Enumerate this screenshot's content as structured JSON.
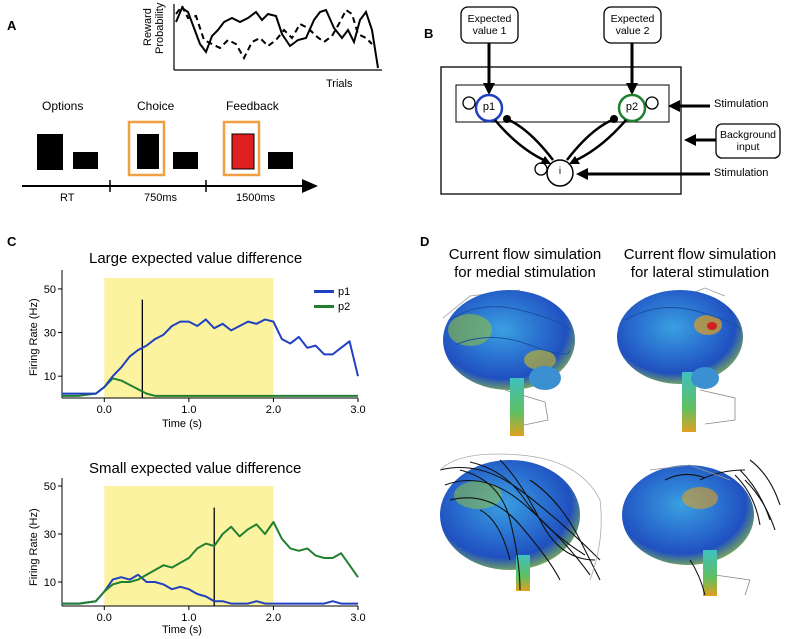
{
  "panels": {
    "a": "A",
    "b": "B",
    "c": "C",
    "d": "D"
  },
  "panel_a": {
    "reward_plot": {
      "ylabel_line1": "Reward",
      "ylabel_line2": "Probability",
      "xlabel": "Trials"
    },
    "phases": [
      {
        "label": "Options",
        "duration": "RT"
      },
      {
        "label": "Choice",
        "duration": "750ms"
      },
      {
        "label": "Feedback",
        "duration": "1500ms"
      }
    ],
    "colors": {
      "highlight": "#f0a040",
      "feedback": "#e02020"
    }
  },
  "panel_b": {
    "expected_value_1_line1": "Expected",
    "expected_value_1_line2": "value 1",
    "expected_value_2_line1": "Expected",
    "expected_value_2_line2": "value 2",
    "pool_p1": "p1",
    "pool_p2": "p2",
    "pool_i": "i",
    "stimulation_top": "Stimulation",
    "stimulation_bottom": "Stimulation",
    "background_line1": "Background",
    "background_line2": "input",
    "colors": {
      "p1": "#2040c0",
      "p2": "#208030"
    }
  },
  "panel_d": {
    "title_medial_line1": "Current flow simulation",
    "title_medial_line2": "for medial stimulation",
    "title_lateral_line1": "Current flow simulation",
    "title_lateral_line2": "for lateral stimulation"
  },
  "chart_data": [
    {
      "type": "line",
      "title": "Large expected value difference",
      "xlabel": "Time (s)",
      "ylabel": "Firing Rate (Hz)",
      "xlim": [
        -0.5,
        3.0
      ],
      "ylim": [
        0,
        55
      ],
      "xticks": [
        "0.0",
        "1.0",
        "2.0",
        "3.0"
      ],
      "yticks": [
        "10",
        "30",
        "50"
      ],
      "shaded_interval": [
        0.0,
        2.0
      ],
      "decision_time": 0.45,
      "x": [
        -0.5,
        -0.3,
        -0.1,
        0.0,
        0.1,
        0.2,
        0.3,
        0.4,
        0.5,
        0.6,
        0.7,
        0.8,
        0.9,
        1.0,
        1.1,
        1.2,
        1.3,
        1.4,
        1.5,
        1.6,
        1.7,
        1.8,
        1.9,
        2.0,
        2.1,
        2.2,
        2.3,
        2.4,
        2.5,
        2.6,
        2.7,
        2.8,
        2.9,
        3.0
      ],
      "series": [
        {
          "name": "p1",
          "color": "#2040c0",
          "values": [
            2,
            2,
            2,
            5,
            10,
            14,
            19,
            22,
            24,
            27,
            29,
            33,
            35,
            35,
            33,
            36,
            32,
            34,
            31,
            33,
            35,
            34,
            36,
            35,
            27,
            25,
            28,
            23,
            24,
            20,
            20,
            23,
            26,
            10
          ]
        },
        {
          "name": "p2",
          "color": "#208030",
          "values": [
            1,
            1,
            2,
            5,
            9,
            8,
            6,
            4,
            2,
            1,
            1,
            1,
            1,
            1,
            1,
            1,
            1,
            1,
            1,
            1,
            1,
            1,
            1,
            1,
            1,
            1,
            1,
            1,
            1,
            1,
            1,
            1,
            1,
            1
          ]
        }
      ]
    },
    {
      "type": "line",
      "title": "Small expected value difference",
      "xlabel": "Time (s)",
      "ylabel": "Firing Rate (Hz)",
      "xlim": [
        -0.5,
        3.0
      ],
      "ylim": [
        0,
        50
      ],
      "xticks": [
        "0.0",
        "1.0",
        "2.0",
        "3.0"
      ],
      "yticks": [
        "10",
        "30",
        "50"
      ],
      "shaded_interval": [
        0.0,
        2.0
      ],
      "decision_time": 1.3,
      "x": [
        -0.5,
        -0.3,
        -0.1,
        0.0,
        0.1,
        0.2,
        0.3,
        0.4,
        0.5,
        0.6,
        0.7,
        0.8,
        0.9,
        1.0,
        1.1,
        1.2,
        1.3,
        1.4,
        1.5,
        1.6,
        1.7,
        1.8,
        1.9,
        2.0,
        2.1,
        2.2,
        2.3,
        2.4,
        2.5,
        2.6,
        2.7,
        2.8,
        2.9,
        3.0
      ],
      "series": [
        {
          "name": "p1",
          "color": "#2040c0",
          "values": [
            1,
            1,
            2,
            6,
            11,
            12,
            11,
            13,
            10,
            10,
            9,
            7,
            8,
            7,
            5,
            4,
            2,
            2,
            1,
            1,
            1,
            2,
            1,
            1,
            1,
            1,
            1,
            1,
            1,
            1,
            2,
            1,
            1,
            1
          ]
        },
        {
          "name": "p2",
          "color": "#208030",
          "values": [
            1,
            1,
            2,
            6,
            9,
            10,
            10,
            11,
            13,
            15,
            17,
            16,
            18,
            20,
            24,
            26,
            25,
            30,
            33,
            29,
            32,
            34,
            30,
            35,
            28,
            24,
            23,
            24,
            21,
            20,
            20,
            22,
            17,
            12
          ]
        }
      ]
    }
  ]
}
